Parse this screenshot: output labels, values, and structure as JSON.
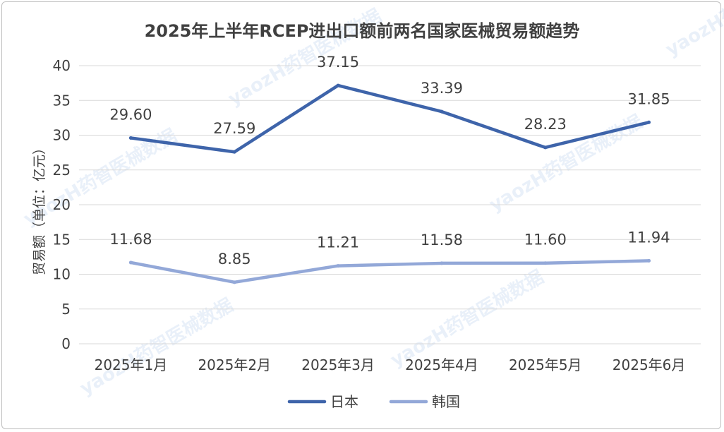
{
  "chart_data": {
    "type": "line",
    "title": "2025年上半年RCEP进出口额前两名国家医械贸易额趋势",
    "ylabel": "贸易额（单位：亿元）",
    "xlabel": "",
    "categories": [
      "2025年1月",
      "2025年2月",
      "2025年3月",
      "2025年4月",
      "2025年5月",
      "2025年6月"
    ],
    "ylim": [
      0,
      40
    ],
    "yticks": [
      0,
      5,
      10,
      15,
      20,
      25,
      30,
      35,
      40
    ],
    "grid": true,
    "legend_position": "bottom",
    "series": [
      {
        "name": "日本",
        "color": "#3e64aa",
        "values": [
          29.6,
          27.59,
          37.15,
          33.39,
          28.23,
          31.85
        ],
        "labels": [
          "29.60",
          "27.59",
          "37.15",
          "33.39",
          "28.23",
          "31.85"
        ]
      },
      {
        "name": "韩国",
        "color": "#93a8d8",
        "values": [
          11.68,
          8.85,
          11.21,
          11.58,
          11.6,
          11.94
        ],
        "labels": [
          "11.68",
          "8.85",
          "11.21",
          "11.58",
          "11.60",
          "11.94"
        ]
      }
    ]
  },
  "watermark": "yaozH药智医械数据"
}
